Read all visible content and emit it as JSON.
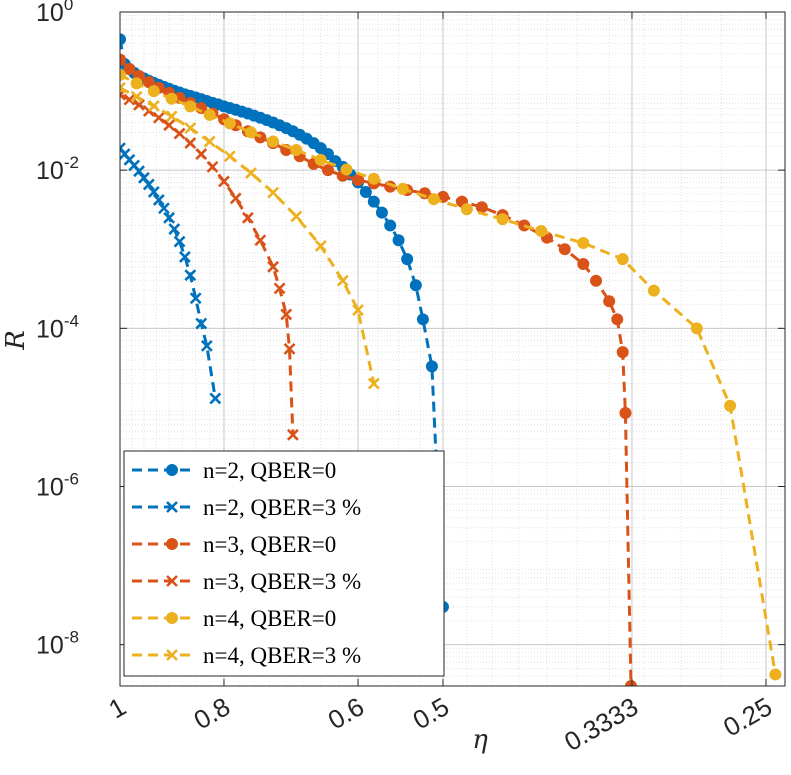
{
  "chart_data": {
    "type": "line",
    "title": "",
    "xlabel": "η",
    "ylabel": "R",
    "x_axis_scale": "log",
    "x_axis_reversed": true,
    "y_axis_scale": "log",
    "xlim": [
      1,
      0.24
    ],
    "ylim": [
      3e-09,
      1
    ],
    "grid": true,
    "minor_grid": true,
    "legend_position": "bottom-left",
    "x_ticks": [
      {
        "value": 1,
        "label": "1"
      },
      {
        "value": 0.8,
        "label": "0.8"
      },
      {
        "value": 0.6,
        "label": "0.6"
      },
      {
        "value": 0.5,
        "label": "0.5"
      },
      {
        "value": 0.3333,
        "label": "0.3333"
      },
      {
        "value": 0.25,
        "label": "0.25"
      }
    ],
    "y_ticks": [
      {
        "value": 1e-08,
        "base": "10",
        "exp": "-8"
      },
      {
        "value": 1e-06,
        "base": "10",
        "exp": "-6"
      },
      {
        "value": 0.0001,
        "base": "10",
        "exp": "-4"
      },
      {
        "value": 0.01,
        "base": "10",
        "exp": "-2"
      },
      {
        "value": 1,
        "base": "10",
        "exp": "0"
      }
    ],
    "series": [
      {
        "name": "n=2, QBER=0",
        "color": "#0072BD",
        "marker": "circle",
        "points": [
          [
            1.0,
            0.45
          ],
          [
            0.99,
            0.22
          ],
          [
            0.98,
            0.19
          ],
          [
            0.97,
            0.17
          ],
          [
            0.96,
            0.155
          ],
          [
            0.95,
            0.145
          ],
          [
            0.94,
            0.135
          ],
          [
            0.93,
            0.127
          ],
          [
            0.92,
            0.12
          ],
          [
            0.91,
            0.113
          ],
          [
            0.9,
            0.107
          ],
          [
            0.89,
            0.101
          ],
          [
            0.88,
            0.096
          ],
          [
            0.87,
            0.091
          ],
          [
            0.86,
            0.087
          ],
          [
            0.85,
            0.083
          ],
          [
            0.84,
            0.079
          ],
          [
            0.83,
            0.075
          ],
          [
            0.82,
            0.071
          ],
          [
            0.81,
            0.068
          ],
          [
            0.8,
            0.064
          ],
          [
            0.79,
            0.061
          ],
          [
            0.78,
            0.058
          ],
          [
            0.77,
            0.055
          ],
          [
            0.76,
            0.052
          ],
          [
            0.75,
            0.049
          ],
          [
            0.74,
            0.046
          ],
          [
            0.73,
            0.043
          ],
          [
            0.72,
            0.04
          ],
          [
            0.71,
            0.037
          ],
          [
            0.7,
            0.034
          ],
          [
            0.69,
            0.031
          ],
          [
            0.68,
            0.028
          ],
          [
            0.67,
            0.025
          ],
          [
            0.66,
            0.022
          ],
          [
            0.65,
            0.019
          ],
          [
            0.64,
            0.016
          ],
          [
            0.63,
            0.013
          ],
          [
            0.62,
            0.011
          ],
          [
            0.61,
            0.0088
          ],
          [
            0.6,
            0.007
          ],
          [
            0.59,
            0.0053
          ],
          [
            0.58,
            0.004
          ],
          [
            0.57,
            0.0029
          ],
          [
            0.56,
            0.002
          ],
          [
            0.55,
            0.0013
          ],
          [
            0.54,
            0.00075
          ],
          [
            0.53,
            0.00035
          ],
          [
            0.522,
            0.00013
          ],
          [
            0.512,
            3.3e-05
          ],
          [
            0.5,
            3e-08
          ]
        ]
      },
      {
        "name": "n=2, QBER=3 %",
        "color": "#0072BD",
        "marker": "x",
        "points": [
          [
            1.0,
            0.019
          ],
          [
            0.99,
            0.016
          ],
          [
            0.98,
            0.0135
          ],
          [
            0.97,
            0.0115
          ],
          [
            0.96,
            0.0097
          ],
          [
            0.95,
            0.008
          ],
          [
            0.94,
            0.0066
          ],
          [
            0.93,
            0.0053
          ],
          [
            0.92,
            0.0042
          ],
          [
            0.91,
            0.0033
          ],
          [
            0.9,
            0.0025
          ],
          [
            0.89,
            0.0018
          ],
          [
            0.88,
            0.00125
          ],
          [
            0.87,
            0.0008
          ],
          [
            0.86,
            0.00047
          ],
          [
            0.85,
            0.00024
          ],
          [
            0.84,
            0.000115
          ],
          [
            0.83,
            6e-05
          ],
          [
            0.815,
            1.3e-05
          ]
        ]
      },
      {
        "name": "n=3, QBER=0",
        "color": "#D95319",
        "marker": "circle",
        "points": [
          [
            1.0,
            0.25
          ],
          [
            0.98,
            0.19
          ],
          [
            0.96,
            0.155
          ],
          [
            0.94,
            0.13
          ],
          [
            0.92,
            0.11
          ],
          [
            0.9,
            0.095
          ],
          [
            0.88,
            0.082
          ],
          [
            0.86,
            0.071
          ],
          [
            0.84,
            0.061
          ],
          [
            0.82,
            0.052
          ],
          [
            0.8,
            0.044
          ],
          [
            0.78,
            0.037
          ],
          [
            0.76,
            0.031
          ],
          [
            0.74,
            0.026
          ],
          [
            0.72,
            0.022
          ],
          [
            0.7,
            0.018
          ],
          [
            0.68,
            0.015
          ],
          [
            0.66,
            0.012
          ],
          [
            0.64,
            0.01
          ],
          [
            0.62,
            0.0085
          ],
          [
            0.6,
            0.0075
          ],
          [
            0.58,
            0.0068
          ],
          [
            0.56,
            0.0062
          ],
          [
            0.54,
            0.0056
          ],
          [
            0.52,
            0.0051
          ],
          [
            0.5,
            0.0046
          ],
          [
            0.48,
            0.004
          ],
          [
            0.46,
            0.0034
          ],
          [
            0.44,
            0.0027
          ],
          [
            0.42,
            0.002
          ],
          [
            0.4,
            0.0014
          ],
          [
            0.385,
            0.001
          ],
          [
            0.37,
            0.00065
          ],
          [
            0.36,
            0.0004
          ],
          [
            0.35,
            0.00022
          ],
          [
            0.344,
            0.00013
          ],
          [
            0.34,
            5e-05
          ],
          [
            0.338,
            8.5e-06
          ],
          [
            0.334,
            3e-09
          ]
        ]
      },
      {
        "name": "n=3, QBER=3 %",
        "color": "#D95319",
        "marker": "x",
        "points": [
          [
            1.0,
            0.09
          ],
          [
            0.98,
            0.078
          ],
          [
            0.96,
            0.067
          ],
          [
            0.94,
            0.056
          ],
          [
            0.92,
            0.046
          ],
          [
            0.9,
            0.037
          ],
          [
            0.88,
            0.029
          ],
          [
            0.86,
            0.022
          ],
          [
            0.84,
            0.016
          ],
          [
            0.82,
            0.011
          ],
          [
            0.8,
            0.0072
          ],
          [
            0.78,
            0.0044
          ],
          [
            0.76,
            0.0025
          ],
          [
            0.74,
            0.0013
          ],
          [
            0.72,
            0.0006
          ],
          [
            0.71,
            0.00032
          ],
          [
            0.7,
            0.00015
          ],
          [
            0.695,
            5.5e-05
          ],
          [
            0.69,
            4.5e-06
          ]
        ]
      },
      {
        "name": "n=4, QBER=0",
        "color": "#EDB120",
        "marker": "circle",
        "points": [
          [
            1.0,
            0.16
          ],
          [
            0.965,
            0.125
          ],
          [
            0.93,
            0.1
          ],
          [
            0.895,
            0.08
          ],
          [
            0.86,
            0.064
          ],
          [
            0.825,
            0.05
          ],
          [
            0.79,
            0.039
          ],
          [
            0.755,
            0.03
          ],
          [
            0.72,
            0.023
          ],
          [
            0.685,
            0.018
          ],
          [
            0.65,
            0.0135
          ],
          [
            0.615,
            0.0102
          ],
          [
            0.58,
            0.0078
          ],
          [
            0.545,
            0.0058
          ],
          [
            0.51,
            0.0043
          ],
          [
            0.475,
            0.0032
          ],
          [
            0.44,
            0.0024
          ],
          [
            0.405,
            0.0017
          ],
          [
            0.37,
            0.0012
          ],
          [
            0.34,
            0.00075
          ],
          [
            0.318,
            0.0003
          ],
          [
            0.29,
            0.0001
          ],
          [
            0.27,
            1.05e-05
          ],
          [
            0.245,
            4.2e-09
          ]
        ]
      },
      {
        "name": "n=4, QBER=3 %",
        "color": "#EDB120",
        "marker": "x",
        "points": [
          [
            1.0,
            0.11
          ],
          [
            0.965,
            0.085
          ],
          [
            0.93,
            0.065
          ],
          [
            0.895,
            0.048
          ],
          [
            0.86,
            0.034
          ],
          [
            0.825,
            0.023
          ],
          [
            0.79,
            0.015
          ],
          [
            0.755,
            0.0092
          ],
          [
            0.72,
            0.0052
          ],
          [
            0.685,
            0.0026
          ],
          [
            0.65,
            0.0011
          ],
          [
            0.62,
            0.0004
          ],
          [
            0.6,
            0.00017
          ],
          [
            0.58,
            2e-05
          ]
        ]
      }
    ]
  }
}
